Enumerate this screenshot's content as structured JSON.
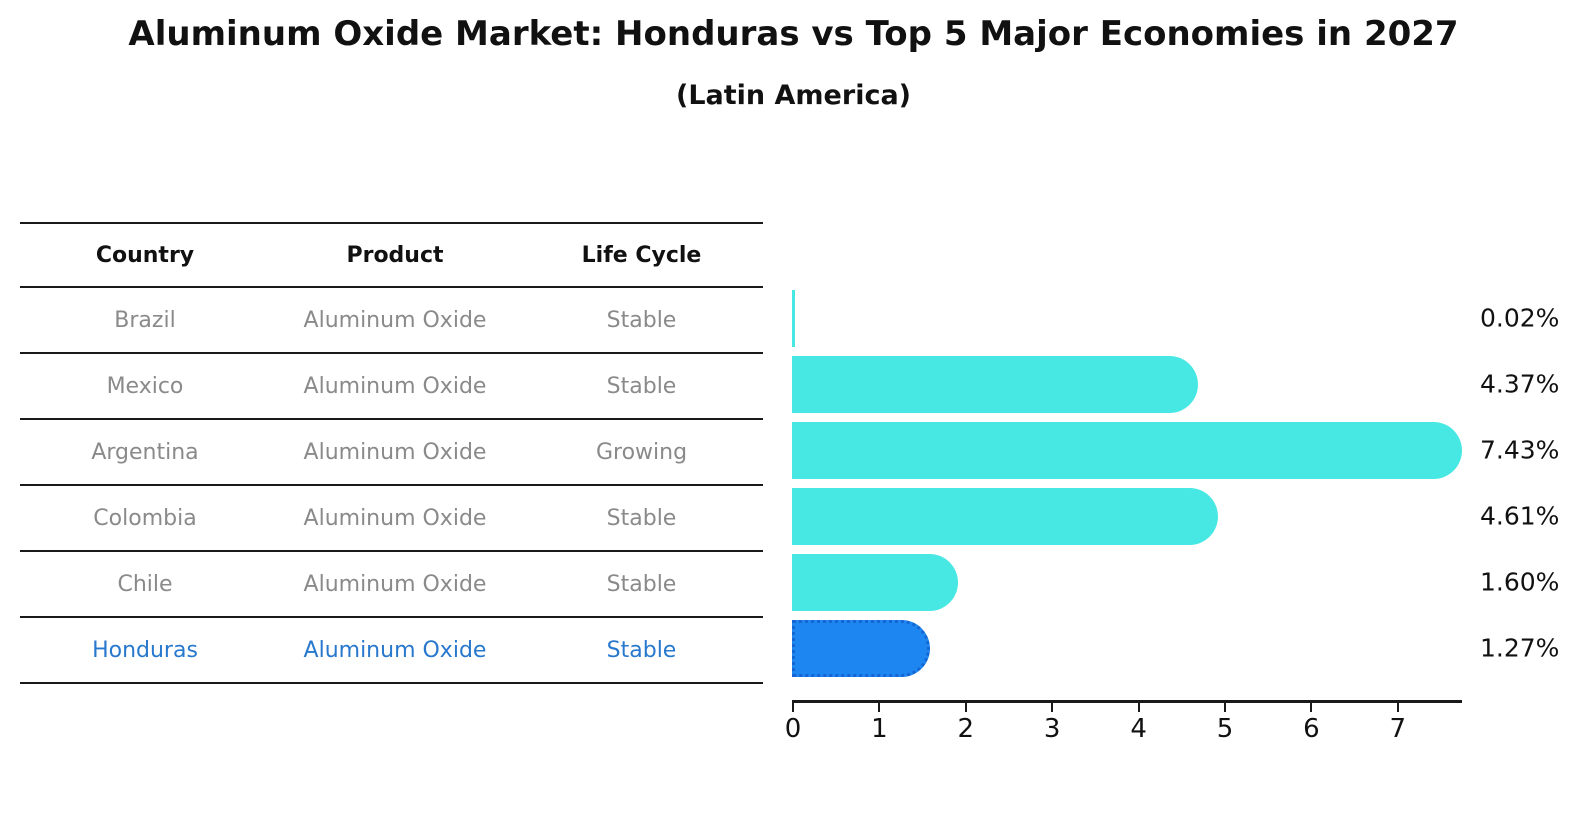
{
  "title": "Aluminum Oxide Market: Honduras vs Top 5 Major Economies in 2027",
  "subtitle": "(Latin America)",
  "table": {
    "headers": [
      "Country",
      "Product",
      "Life Cycle"
    ],
    "rows": [
      {
        "country": "Brazil",
        "product": "Aluminum Oxide",
        "life_cycle": "Stable",
        "highlight": false
      },
      {
        "country": "Mexico",
        "product": "Aluminum Oxide",
        "life_cycle": "Stable",
        "highlight": false
      },
      {
        "country": "Argentina",
        "product": "Aluminum Oxide",
        "life_cycle": "Growing",
        "highlight": false
      },
      {
        "country": "Colombia",
        "product": "Aluminum Oxide",
        "life_cycle": "Stable",
        "highlight": false
      },
      {
        "country": "Chile",
        "product": "Aluminum Oxide",
        "life_cycle": "Stable",
        "highlight": false
      },
      {
        "country": "Honduras",
        "product": "Aluminum Oxide",
        "life_cycle": "Stable",
        "highlight": true
      }
    ]
  },
  "chart_data": {
    "type": "bar",
    "orientation": "horizontal",
    "title": "Aluminum Oxide Market: Honduras vs Top 5 Major Economies in 2027",
    "subtitle": "(Latin America)",
    "categories": [
      "Brazil",
      "Mexico",
      "Argentina",
      "Colombia",
      "Chile",
      "Honduras"
    ],
    "values": [
      0.02,
      4.37,
      7.43,
      4.61,
      1.6,
      1.27
    ],
    "value_labels": [
      "0.02%",
      "4.37%",
      "7.43%",
      "4.61%",
      "1.60%",
      "1.27%"
    ],
    "highlight_index": 5,
    "x_ticks": [
      0,
      1,
      2,
      3,
      4,
      5,
      6,
      7
    ],
    "xlim": [
      0,
      7.75
    ],
    "xlabel": "",
    "ylabel": "",
    "grid": "off",
    "legend": "off",
    "colors": {
      "bar_default": "#47e8e3",
      "bar_highlight": "#1e86f0",
      "bar_highlight_border": "#1467d2",
      "highlight_text": "#2878cd",
      "row_text": "#8a8a8a",
      "axis": "#1a1a1a"
    }
  }
}
